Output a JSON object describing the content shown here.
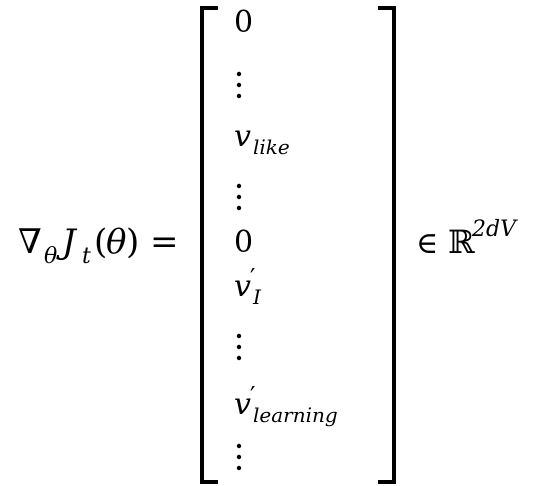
{
  "equation": {
    "nabla": "∇",
    "nabla_sub": "θ",
    "J": "J",
    "J_sub": "t",
    "lparen": "(",
    "theta": "θ",
    "rparen": ")",
    "equals": "=",
    "rows": [
      {
        "kind": "text",
        "base": "0"
      },
      {
        "kind": "vdots"
      },
      {
        "kind": "text",
        "base": "v",
        "sub": "like"
      },
      {
        "kind": "vdots"
      },
      {
        "kind": "text",
        "base": "0"
      },
      {
        "kind": "text",
        "base": "v",
        "prime": "′",
        "sub": "I"
      },
      {
        "kind": "vdots"
      },
      {
        "kind": "text",
        "base": "v",
        "prime": "′",
        "sub": "learning"
      },
      {
        "kind": "vdots"
      }
    ],
    "element_of": "∈",
    "real_set": "ℝ",
    "real_sup": "2dV"
  },
  "colors": {
    "ink": "#000000",
    "background": "#ffffff"
  }
}
